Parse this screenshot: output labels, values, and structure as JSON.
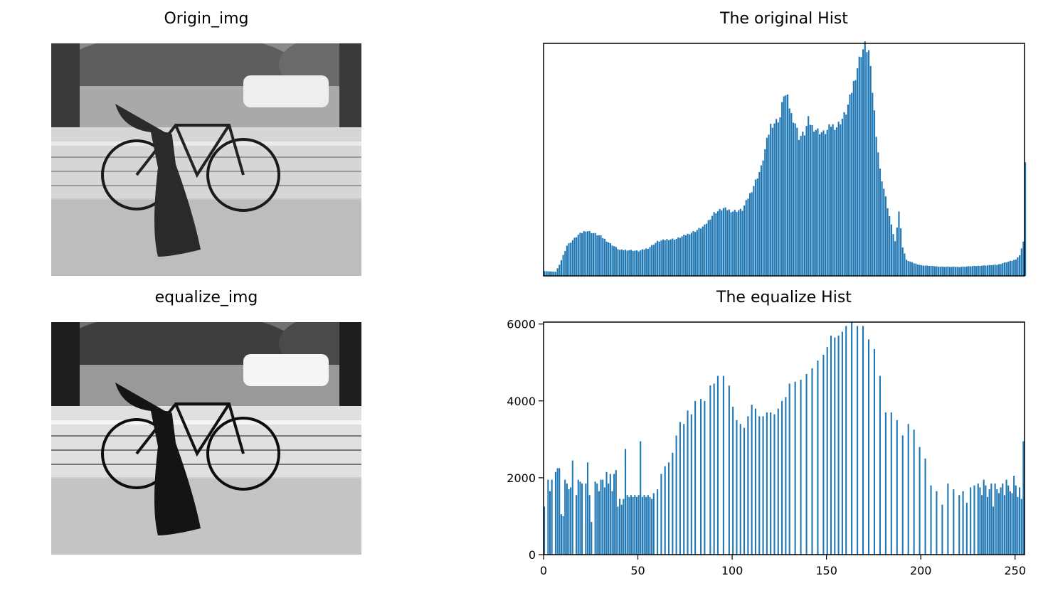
{
  "panels": {
    "origin_title": "Origin_img",
    "equalize_title": "equalize_img",
    "orig_hist_title": "The original Hist",
    "eq_hist_title": "The equalize Hist"
  },
  "colors": {
    "bar": "#1f77b4",
    "axis": "#000000"
  },
  "chart_data": [
    {
      "type": "bar",
      "title": "The original Hist",
      "xlabel": "",
      "ylabel": "",
      "xlim": [
        0,
        255
      ],
      "axes_visible": false,
      "grid": false,
      "keypoints": [
        [
          0,
          180
        ],
        [
          3,
          170
        ],
        [
          6,
          160
        ],
        [
          8,
          420
        ],
        [
          12,
          1150
        ],
        [
          18,
          1550
        ],
        [
          22,
          1720
        ],
        [
          25,
          1650
        ],
        [
          30,
          1500
        ],
        [
          35,
          1220
        ],
        [
          40,
          980
        ],
        [
          45,
          980
        ],
        [
          50,
          940
        ],
        [
          55,
          1050
        ],
        [
          60,
          1300
        ],
        [
          65,
          1380
        ],
        [
          70,
          1400
        ],
        [
          75,
          1550
        ],
        [
          80,
          1700
        ],
        [
          85,
          1900
        ],
        [
          90,
          2380
        ],
        [
          95,
          2550
        ],
        [
          100,
          2450
        ],
        [
          105,
          2500
        ],
        [
          110,
          3250
        ],
        [
          115,
          4100
        ],
        [
          118,
          5100
        ],
        [
          120,
          5700
        ],
        [
          123,
          5850
        ],
        [
          125,
          6000
        ],
        [
          127,
          6900
        ],
        [
          129,
          6700
        ],
        [
          131,
          6100
        ],
        [
          133,
          5800
        ],
        [
          135,
          5250
        ],
        [
          138,
          5400
        ],
        [
          140,
          5900
        ],
        [
          142,
          5650
        ],
        [
          145,
          5500
        ],
        [
          148,
          5400
        ],
        [
          150,
          5500
        ],
        [
          152,
          5700
        ],
        [
          155,
          5650
        ],
        [
          158,
          5950
        ],
        [
          160,
          6200
        ],
        [
          162,
          6700
        ],
        [
          164,
          7300
        ],
        [
          166,
          7900
        ],
        [
          168,
          8450
        ],
        [
          170,
          8700
        ],
        [
          172,
          8500
        ],
        [
          174,
          7000
        ],
        [
          176,
          5400
        ],
        [
          178,
          4000
        ],
        [
          180,
          3300
        ],
        [
          182,
          2600
        ],
        [
          184,
          1900
        ],
        [
          186,
          1300
        ],
        [
          188,
          2450
        ],
        [
          190,
          1100
        ],
        [
          192,
          600
        ],
        [
          196,
          480
        ],
        [
          200,
          400
        ],
        [
          210,
          350
        ],
        [
          220,
          340
        ],
        [
          230,
          380
        ],
        [
          240,
          420
        ],
        [
          245,
          520
        ],
        [
          250,
          620
        ],
        [
          252,
          780
        ],
        [
          254,
          1300
        ],
        [
          255,
          4300
        ]
      ],
      "ylim": [
        0,
        8800
      ]
    },
    {
      "type": "bar",
      "title": "The equalize Hist",
      "xlabel": "",
      "ylabel": "",
      "xlim": [
        0,
        255
      ],
      "ylim": [
        0,
        6050
      ],
      "grid": false,
      "xticks": [
        0,
        50,
        100,
        150,
        200,
        250
      ],
      "yticks": [
        0,
        2000,
        4000,
        6000
      ],
      "x": [
        0,
        2,
        3,
        4,
        6,
        7,
        8,
        9,
        10,
        11,
        12,
        13,
        14,
        15,
        17,
        18,
        19,
        20,
        22,
        23,
        24,
        25,
        27,
        28,
        29,
        30,
        31,
        32,
        33,
        34,
        35,
        36,
        37,
        38,
        39,
        40,
        41,
        42,
        43,
        44,
        45,
        46,
        47,
        48,
        49,
        50,
        51,
        52,
        53,
        54,
        55,
        56,
        57,
        58,
        60,
        62,
        64,
        66,
        68,
        70,
        72,
        74,
        76,
        78,
        80,
        83,
        85,
        88,
        90,
        92,
        95,
        98,
        100,
        102,
        104,
        106,
        108,
        110,
        112,
        114,
        116,
        118,
        120,
        122,
        124,
        126,
        128,
        130,
        133,
        136,
        139,
        142,
        145,
        148,
        150,
        152,
        154,
        156,
        158,
        160,
        163,
        166,
        169,
        172,
        175,
        178,
        181,
        184,
        187,
        190,
        193,
        196,
        199,
        202,
        205,
        208,
        211,
        214,
        217,
        220,
        222,
        224,
        226,
        228,
        230,
        231,
        232,
        233,
        234,
        235,
        236,
        237,
        238,
        239,
        240,
        241,
        242,
        243,
        244,
        245,
        246,
        247,
        248,
        249,
        250,
        251,
        252,
        253,
        254
      ],
      "values": [
        1250,
        1950,
        1650,
        1950,
        2150,
        2250,
        2250,
        1050,
        1000,
        1950,
        1850,
        1700,
        1750,
        2450,
        1550,
        1950,
        1900,
        1850,
        1850,
        2400,
        1550,
        850,
        1900,
        1850,
        1650,
        1950,
        1950,
        1750,
        2150,
        1850,
        2100,
        1650,
        2100,
        2200,
        1250,
        1450,
        1300,
        1450,
        2750,
        1550,
        1500,
        1550,
        1500,
        1550,
        1500,
        1550,
        2950,
        1500,
        1550,
        1500,
        1550,
        1500,
        1450,
        1600,
        1700,
        2100,
        2300,
        2400,
        2650,
        3100,
        3450,
        3400,
        3750,
        3650,
        4000,
        4050,
        4000,
        4400,
        4450,
        4650,
        4650,
        4400,
        3850,
        3500,
        3400,
        3300,
        3600,
        3900,
        3800,
        3600,
        3600,
        3700,
        3700,
        3650,
        3800,
        4000,
        4100,
        4450,
        4500,
        4550,
        4700,
        4850,
        5050,
        5200,
        5400,
        5700,
        5650,
        5700,
        5800,
        5950,
        6050,
        5950,
        5950,
        5600,
        5350,
        4650,
        3700,
        3700,
        3500,
        3100,
        3400,
        3250,
        2800,
        2500,
        1800,
        1650,
        1300,
        1850,
        1700,
        1550,
        1650,
        1350,
        1750,
        1800,
        1850,
        1750,
        1550,
        1950,
        1800,
        1500,
        1700,
        1850,
        1250,
        1850,
        1700,
        1600,
        1750,
        1850,
        1550,
        1950,
        1800,
        1650,
        1600,
        2050,
        1800,
        1500,
        1750,
        1450,
        2950
      ],
      "_note_removed": ""
    }
  ]
}
